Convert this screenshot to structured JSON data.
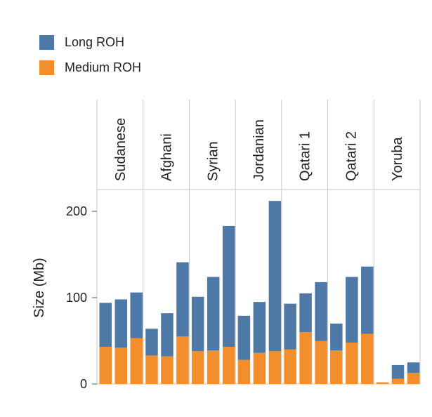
{
  "chart_data": {
    "type": "bar",
    "stacked": true,
    "ylabel": "Size (Mb)",
    "ylim": [
      0,
      230
    ],
    "yticks": [
      0,
      100,
      200
    ],
    "grid": false,
    "legend_position": "top-left",
    "panels": [
      "Sudanese",
      "Afghani",
      "Syrian",
      "Jordanian",
      "Qatari 1",
      "Qatari 2",
      "Yoruba"
    ],
    "bars_per_panel": 3,
    "series": [
      {
        "name": "Medium ROH",
        "color": "#F28E2B",
        "values": [
          43,
          42,
          53,
          33,
          32,
          55,
          38,
          39,
          43,
          28,
          36,
          38,
          40,
          60,
          50,
          39,
          48,
          58,
          2,
          6,
          13
        ]
      },
      {
        "name": "Long ROH",
        "color": "#4E79A7",
        "values": [
          51,
          56,
          53,
          31,
          50,
          86,
          63,
          85,
          140,
          51,
          59,
          174,
          53,
          45,
          68,
          31,
          76,
          78,
          0,
          16,
          12
        ]
      }
    ]
  }
}
